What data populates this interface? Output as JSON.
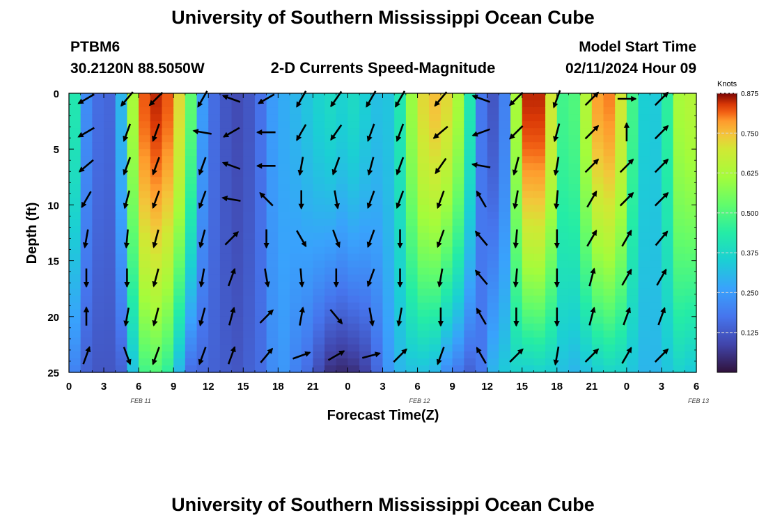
{
  "header": {
    "title": "University of Southern Mississippi Ocean Cube",
    "station": "PTBM6",
    "coords": "30.2120N  88.5050W",
    "subtitle": "2-D Currents Speed-Magnitude",
    "model_label": "Model Start Time",
    "model_time": "02/11/2024 Hour 09"
  },
  "footer": {
    "title": "University of Southern Mississippi Ocean Cube"
  },
  "chart_data": {
    "type": "heatmap",
    "xlabel": "Forecast Time(Z)",
    "ylabel": "Depth (ft)",
    "x_ticks": [
      "0",
      "3",
      "6",
      "9",
      "12",
      "15",
      "18",
      "21",
      "0",
      "3",
      "6",
      "9",
      "12",
      "15",
      "18",
      "21",
      "0",
      "3",
      "6"
    ],
    "y_ticks": [
      "0",
      "5",
      "10",
      "15",
      "20",
      "25"
    ],
    "ylim": [
      0,
      25
    ],
    "y_inverted": true,
    "date_labels": [
      {
        "text": "FEB 11",
        "hour": 6
      },
      {
        "text": "FEB 12",
        "hour": 30
      },
      {
        "text": "FEB 13",
        "hour": 54
      }
    ],
    "colorbar": {
      "label": "Knots",
      "range": [
        0,
        0.875
      ],
      "ticks": [
        "0.875",
        "0.750",
        "0.625",
        "0.500",
        "0.375",
        "0.250",
        "0.125"
      ]
    },
    "speed_profile": {
      "hours": [
        0,
        1,
        2,
        3,
        4,
        5,
        6,
        7,
        8,
        9,
        10,
        11,
        12,
        13,
        14,
        15,
        16,
        17,
        18,
        19,
        20,
        21,
        22,
        23,
        24,
        25,
        26,
        27,
        28,
        29,
        30,
        31,
        32,
        33,
        34,
        35,
        36,
        37,
        38,
        39,
        40,
        41,
        42,
        43,
        44,
        45,
        46,
        47,
        48,
        49,
        50,
        51,
        52,
        53,
        54
      ],
      "surface_knots": [
        0.42,
        0.22,
        0.16,
        0.15,
        0.3,
        0.62,
        0.82,
        0.85,
        0.82,
        0.72,
        0.52,
        0.25,
        0.16,
        0.12,
        0.1,
        0.12,
        0.17,
        0.25,
        0.28,
        0.3,
        0.33,
        0.36,
        0.38,
        0.36,
        0.38,
        0.35,
        0.32,
        0.33,
        0.42,
        0.6,
        0.72,
        0.75,
        0.72,
        0.62,
        0.42,
        0.18,
        0.12,
        0.2,
        0.62,
        0.85,
        0.85,
        0.7,
        0.48,
        0.5,
        0.64,
        0.78,
        0.8,
        0.7,
        0.48,
        0.35,
        0.34,
        0.45,
        0.62,
        0.64,
        0.6
      ],
      "bottom_knots": [
        0.2,
        0.14,
        0.12,
        0.12,
        0.14,
        0.32,
        0.48,
        0.5,
        0.45,
        0.3,
        0.16,
        0.15,
        0.14,
        0.13,
        0.12,
        0.14,
        0.16,
        0.22,
        0.24,
        0.2,
        0.16,
        0.1,
        0.05,
        0.04,
        0.05,
        0.08,
        0.15,
        0.24,
        0.3,
        0.32,
        0.32,
        0.3,
        0.22,
        0.18,
        0.14,
        0.18,
        0.3,
        0.34,
        0.36,
        0.35,
        0.36,
        0.35,
        0.32,
        0.3,
        0.32,
        0.35,
        0.37,
        0.36,
        0.33,
        0.3,
        0.3,
        0.33,
        0.36,
        0.34,
        0.32
      ]
    },
    "vector_hours": [
      1.5,
      5,
      7.5,
      11.5,
      14,
      17,
      20,
      23,
      26,
      28.5,
      32,
      35.5,
      38.5,
      42,
      45,
      48,
      51
    ],
    "vector_depths": [
      0.5,
      3.5,
      6.5,
      9.5,
      13,
      16.5,
      20,
      23.5
    ],
    "vector_directions_deg": [
      [
        240,
        220,
        225,
        210,
        290,
        240,
        210,
        215,
        210,
        210,
        220,
        290,
        225,
        200,
        45,
        90,
        45
      ],
      [
        240,
        200,
        200,
        280,
        240,
        270,
        210,
        215,
        200,
        200,
        230,
        250,
        225,
        195,
        45,
        0,
        45
      ],
      [
        230,
        200,
        200,
        200,
        290,
        270,
        190,
        200,
        195,
        200,
        215,
        280,
        195,
        190,
        45,
        45,
        45
      ],
      [
        210,
        195,
        200,
        200,
        280,
        315,
        180,
        170,
        200,
        200,
        200,
        330,
        190,
        185,
        30,
        45,
        45
      ],
      [
        190,
        185,
        195,
        195,
        45,
        180,
        150,
        160,
        200,
        180,
        200,
        320,
        185,
        180,
        30,
        30,
        40
      ],
      [
        180,
        180,
        195,
        190,
        20,
        170,
        175,
        180,
        200,
        180,
        190,
        320,
        185,
        180,
        15,
        30,
        30
      ],
      [
        0,
        190,
        195,
        195,
        15,
        45,
        10,
        140,
        170,
        190,
        180,
        330,
        180,
        180,
        15,
        20,
        20
      ],
      [
        20,
        160,
        200,
        200,
        20,
        40,
        70,
        60,
        75,
        45,
        200,
        330,
        45,
        190,
        45,
        30,
        45
      ]
    ]
  }
}
